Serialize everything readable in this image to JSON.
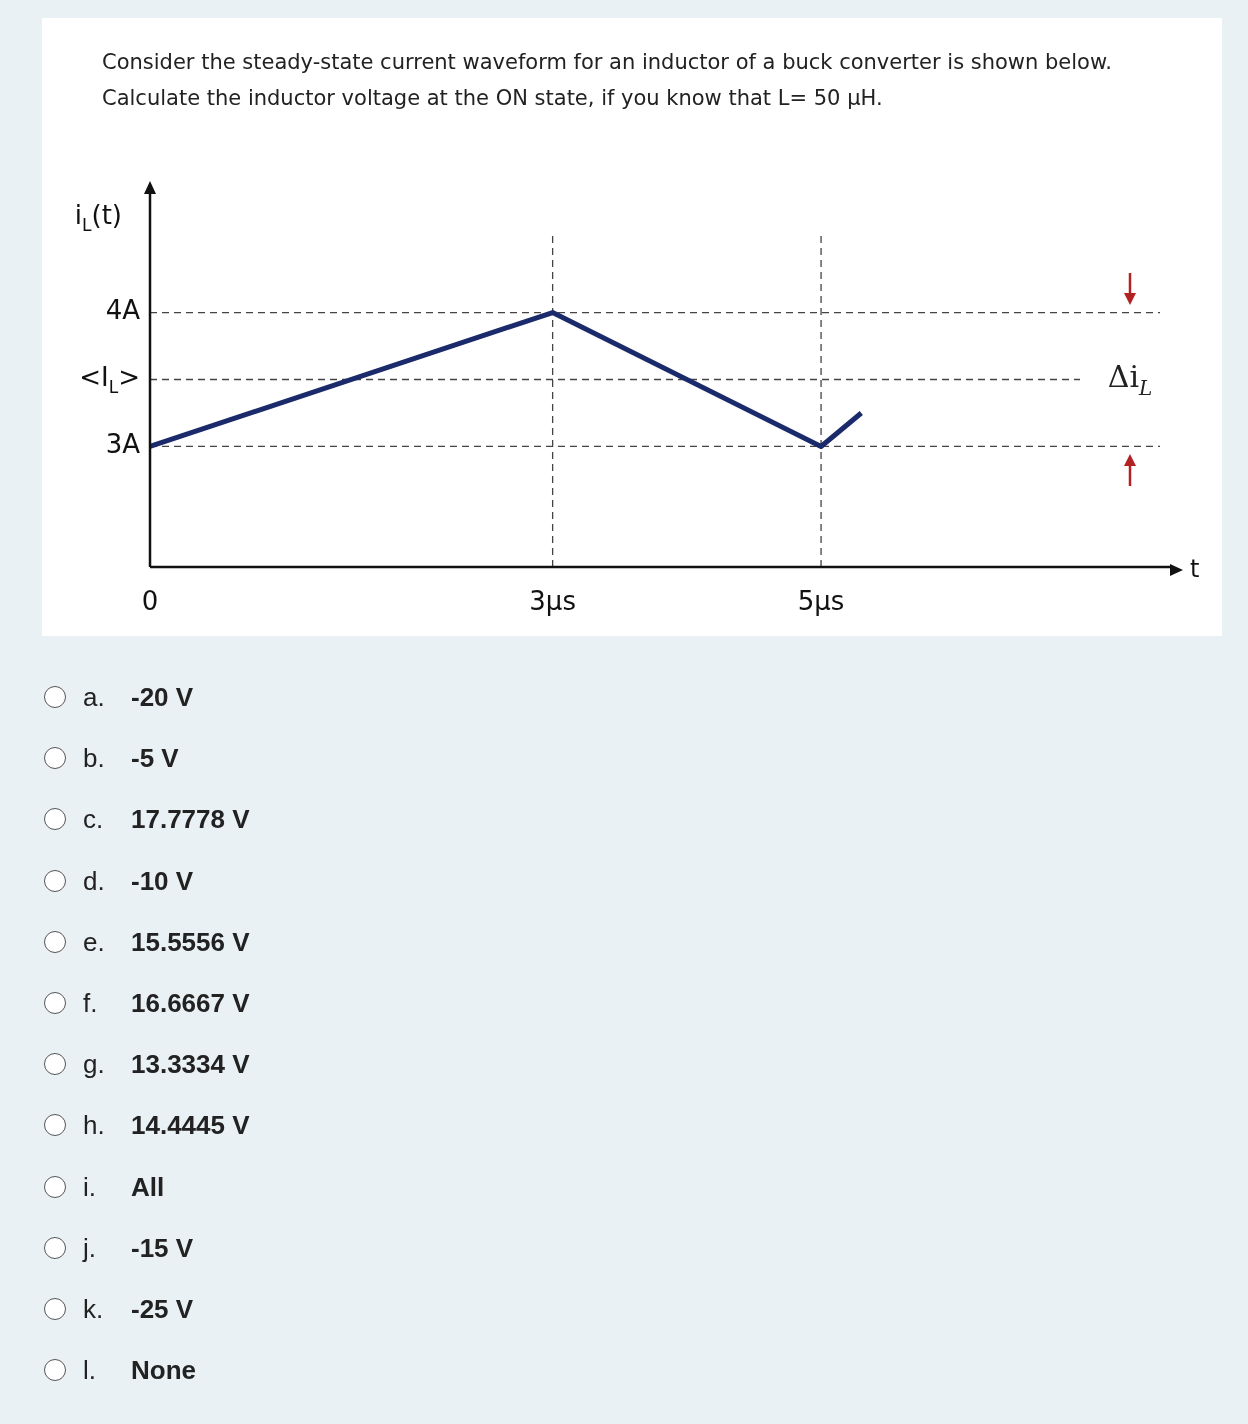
{
  "chart_data": {
    "type": "line",
    "title": "Consider the steady-state current waveform for an inductor of a buck converter is shown below. Calculate the inductor voltage at the ON state, if you know that L= 50 µH.",
    "xlabel": "t",
    "ylabel": "i$_{L}$(t)",
    "x": [
      0,
      3,
      5,
      5.3
    ],
    "series": [
      {
        "color": "#1b2a6b",
        "values": [
          3,
          4,
          3,
          3.25
        ]
      }
    ],
    "xlim": [
      0,
      7.6
    ],
    "xticks": [
      0,
      {
        "value": 3,
        "label": "3µs"
      },
      {
        "value": 5,
        "label": "5µs"
      }
    ],
    "ylim": [
      2.1,
      4.9
    ],
    "yticks": [
      {
        "value": 4,
        "label": "4A"
      },
      {
        "value": 3.5,
        "label": "<I$_{L}$>"
      },
      {
        "value": 3,
        "label": "3A"
      }
    ],
    "ref_lines": [
      {
        "axis": "y",
        "value": 4,
        "line_style": "dashed"
      },
      {
        "axis": "y",
        "value": 3.5,
        "line_style": "dashed"
      },
      {
        "axis": "y",
        "value": 3,
        "line_style": "dashed"
      },
      {
        "axis": "x",
        "value": 3,
        "line_style": "dashed"
      },
      {
        "axis": "x",
        "value": 5,
        "line_style": "dashed"
      }
    ],
    "annotations": [
      "Δi$_{L}$",
      "a. -20 V",
      "b. -5 V",
      "c. 17.7778 V",
      "d. -10 V",
      "e. 15.5556 V",
      "f. 16.6667 V",
      "g. 13.3334 V",
      "h. 14.4445 V",
      "i. All",
      "j. -15 V",
      "k. -25 V",
      "l. None"
    ],
    "grid": false,
    "legend": false,
    "marker": "none",
    "line_style": "solid"
  }
}
